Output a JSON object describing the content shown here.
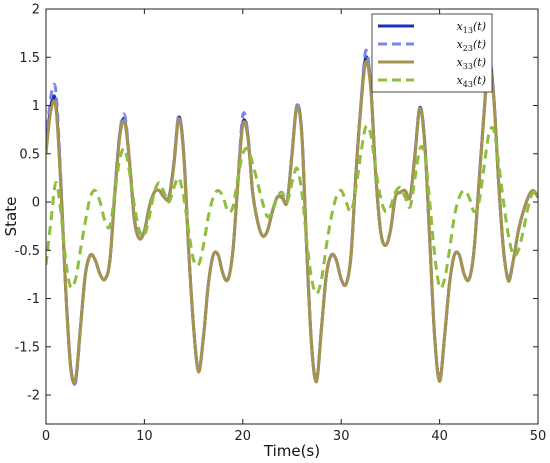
{
  "chart_data": {
    "type": "line",
    "xlabel": "Time(s)",
    "ylabel": "State",
    "xlim": [
      0,
      50
    ],
    "ylim": [
      -2.3,
      2
    ],
    "xticks": [
      "0",
      "10",
      "20",
      "30",
      "40",
      "50"
    ],
    "yticks": [
      "-2",
      "-1.5",
      "-1",
      "-0.5",
      "0",
      "0.5",
      "1",
      "1.5",
      "2"
    ],
    "grid": false,
    "legend_position": "top-right",
    "x": [
      0,
      0.5,
      1,
      1.5,
      2,
      2.5,
      3,
      3.5,
      4,
      4.5,
      5,
      5.5,
      6,
      6.5,
      7,
      7.5,
      8,
      8.5,
      9,
      9.5,
      10,
      10.5,
      11,
      11.5,
      12,
      12.5,
      13,
      13.5,
      14,
      14.5,
      15,
      15.5,
      16,
      16.5,
      17,
      17.5,
      18,
      18.5,
      19,
      19.5,
      20,
      20.5,
      21,
      21.5,
      22,
      22.5,
      23,
      23.5,
      24,
      24.5,
      25,
      25.5,
      26,
      26.5,
      27,
      27.5,
      28,
      28.5,
      29,
      29.5,
      30,
      30.5,
      31,
      31.5,
      32,
      32.5,
      33,
      33.5,
      34,
      34.5,
      35,
      35.5,
      36,
      36.5,
      37,
      37.5,
      38,
      38.5,
      39,
      39.5,
      40,
      40.5,
      41,
      41.5,
      42,
      42.5,
      43,
      43.5,
      44,
      44.5,
      45,
      45.5,
      46,
      46.5,
      47,
      47.5,
      48,
      48.5,
      49,
      49.5,
      50
    ],
    "series": [
      {
        "name": "x_{13}(t)",
        "label_main": "x",
        "label_sub": "13",
        "color": "#1f2fb3",
        "style": "solid",
        "values": [
          0.55,
          1.0,
          1.03,
          0.2,
          -0.9,
          -1.7,
          -1.85,
          -1.3,
          -0.75,
          -0.55,
          -0.6,
          -0.75,
          -0.8,
          -0.6,
          0.1,
          0.7,
          0.85,
          0.4,
          -0.2,
          -0.38,
          -0.3,
          -0.05,
          0.1,
          0.12,
          0.05,
          0.05,
          0.4,
          0.88,
          0.5,
          -0.5,
          -1.3,
          -1.75,
          -1.4,
          -0.85,
          -0.55,
          -0.55,
          -0.75,
          -0.8,
          -0.5,
          0.2,
          0.82,
          0.7,
          0.1,
          -0.2,
          -0.35,
          -0.3,
          -0.1,
          0.05,
          0.05,
          0.0,
          0.5,
          1.0,
          0.7,
          -0.5,
          -1.5,
          -1.85,
          -1.3,
          -0.75,
          -0.55,
          -0.6,
          -0.8,
          -0.85,
          -0.55,
          0.3,
          1.0,
          1.5,
          1.2,
          0.3,
          -0.3,
          -0.45,
          -0.3,
          0.05,
          0.1,
          0.12,
          0.05,
          0.5,
          0.98,
          0.6,
          -0.4,
          -1.4,
          -1.85,
          -1.4,
          -0.85,
          -0.55,
          -0.55,
          -0.75,
          -0.8,
          -0.5,
          0.2,
          0.9,
          1.48,
          1.1,
          0.2,
          -0.5,
          -0.8,
          -0.6,
          -0.3,
          -0.1,
          0.05,
          0.12,
          0.05
        ]
      },
      {
        "name": "x_{23}(t)",
        "label_main": "x",
        "label_sub": "23",
        "color": "#7b86e6",
        "style": "dashed",
        "values": [
          0.6,
          1.1,
          1.15,
          0.25,
          -0.88,
          -1.68,
          -1.87,
          -1.32,
          -0.76,
          -0.56,
          -0.6,
          -0.75,
          -0.8,
          -0.6,
          0.12,
          0.72,
          0.9,
          0.42,
          -0.18,
          -0.38,
          -0.3,
          -0.05,
          0.1,
          0.12,
          0.05,
          0.06,
          0.42,
          0.9,
          0.5,
          -0.5,
          -1.3,
          -1.75,
          -1.4,
          -0.85,
          -0.55,
          -0.55,
          -0.75,
          -0.8,
          -0.5,
          0.22,
          0.9,
          0.72,
          0.1,
          -0.2,
          -0.35,
          -0.3,
          -0.1,
          0.05,
          0.06,
          0.0,
          0.5,
          1.0,
          0.7,
          -0.5,
          -1.5,
          -1.85,
          -1.3,
          -0.75,
          -0.55,
          -0.6,
          -0.8,
          -0.85,
          -0.55,
          0.3,
          1.0,
          1.57,
          1.2,
          0.3,
          -0.3,
          -0.45,
          -0.3,
          0.05,
          0.1,
          0.12,
          0.05,
          0.5,
          0.98,
          0.6,
          -0.4,
          -1.4,
          -1.85,
          -1.4,
          -0.85,
          -0.55,
          -0.55,
          -0.75,
          -0.8,
          -0.5,
          0.2,
          0.9,
          1.52,
          1.1,
          0.2,
          -0.5,
          -0.8,
          -0.6,
          -0.3,
          -0.1,
          0.05,
          0.12,
          0.05
        ]
      },
      {
        "name": "x_{33}(t)",
        "label_main": "x",
        "label_sub": "33",
        "color": "#a49450",
        "style": "solid",
        "values": [
          0.5,
          0.95,
          0.98,
          0.18,
          -0.9,
          -1.72,
          -1.83,
          -1.3,
          -0.75,
          -0.55,
          -0.6,
          -0.75,
          -0.8,
          -0.6,
          0.08,
          0.68,
          0.83,
          0.4,
          -0.2,
          -0.38,
          -0.3,
          -0.05,
          0.1,
          0.12,
          0.05,
          0.04,
          0.38,
          0.86,
          0.48,
          -0.5,
          -1.3,
          -1.76,
          -1.4,
          -0.85,
          -0.55,
          -0.55,
          -0.75,
          -0.8,
          -0.5,
          0.18,
          0.8,
          0.68,
          0.1,
          -0.2,
          -0.35,
          -0.3,
          -0.1,
          0.05,
          0.04,
          0.0,
          0.48,
          0.98,
          0.68,
          -0.5,
          -1.5,
          -1.86,
          -1.3,
          -0.75,
          -0.55,
          -0.6,
          -0.8,
          -0.85,
          -0.55,
          0.28,
          0.98,
          1.45,
          1.18,
          0.3,
          -0.3,
          -0.45,
          -0.3,
          0.05,
          0.1,
          0.12,
          0.05,
          0.48,
          0.97,
          0.58,
          -0.4,
          -1.4,
          -1.86,
          -1.4,
          -0.85,
          -0.55,
          -0.55,
          -0.75,
          -0.8,
          -0.5,
          0.18,
          0.88,
          1.43,
          1.08,
          0.2,
          -0.5,
          -0.82,
          -0.6,
          -0.3,
          -0.1,
          0.05,
          0.12,
          0.05
        ]
      },
      {
        "name": "x_{43}(t)",
        "label_main": "x",
        "label_sub": "43",
        "color": "#8dbe3e",
        "style": "dashed",
        "values": [
          -0.65,
          -0.2,
          0.2,
          -0.1,
          -0.6,
          -0.88,
          -0.8,
          -0.5,
          -0.2,
          0.05,
          0.12,
          0.0,
          -0.2,
          -0.25,
          0.1,
          0.45,
          0.55,
          0.3,
          -0.05,
          -0.3,
          -0.35,
          -0.15,
          0.1,
          0.2,
          0.1,
          0.0,
          0.15,
          0.25,
          0.05,
          -0.3,
          -0.6,
          -0.65,
          -0.45,
          -0.15,
          0.05,
          0.12,
          0.05,
          -0.1,
          -0.05,
          0.25,
          0.5,
          0.55,
          0.4,
          0.2,
          0.0,
          -0.15,
          -0.1,
          0.05,
          0.1,
          0.0,
          0.2,
          0.35,
          0.1,
          -0.4,
          -0.8,
          -0.95,
          -0.8,
          -0.45,
          -0.15,
          0.05,
          0.12,
          0.0,
          -0.1,
          0.15,
          0.5,
          0.78,
          0.7,
          0.35,
          0.05,
          -0.1,
          -0.05,
          0.1,
          0.15,
          0.05,
          -0.05,
          0.25,
          0.55,
          0.5,
          0.0,
          -0.55,
          -0.88,
          -0.8,
          -0.5,
          -0.15,
          0.05,
          0.12,
          0.05,
          -0.1,
          0.0,
          0.35,
          0.7,
          0.75,
          0.4,
          0.0,
          -0.35,
          -0.55,
          -0.5,
          -0.3,
          -0.05,
          0.1,
          0.05
        ]
      }
    ]
  }
}
